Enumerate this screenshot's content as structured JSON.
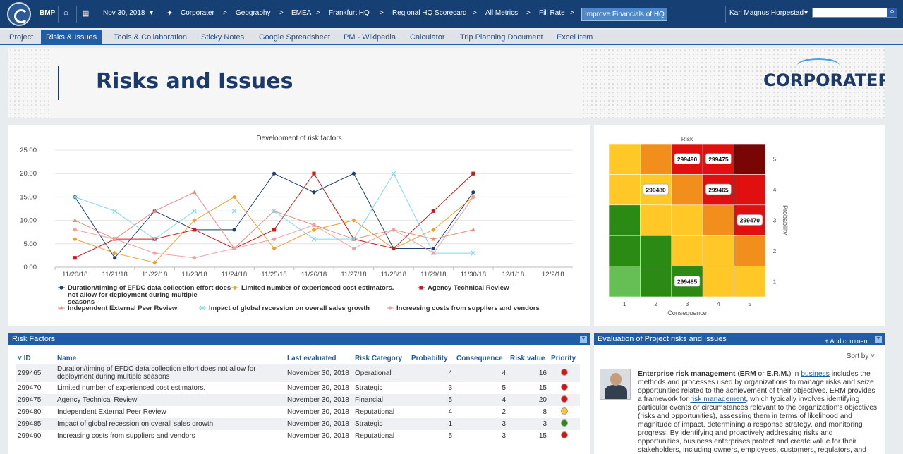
{
  "topbar": {
    "app_name": "BMP",
    "date": "Nov 30, 2018",
    "breadcrumb": [
      "Corporater",
      "Geography",
      "EMEA",
      "Frankfurt HQ",
      "Regional HQ Scorecard",
      "All Metrics",
      "Fill Rate"
    ],
    "highlight": "Improve Financials of HQ",
    "user": "Karl Magnus Horpestad"
  },
  "tabs": [
    "Project",
    "Risks & Issues",
    "Tools & Collaboration",
    "Sticky Notes",
    "Google Spreadsheet",
    "PM - Wikipedia",
    "Calculator",
    "Trip Planning Document",
    "Excel Item"
  ],
  "active_tab": "Risks & Issues",
  "banner": {
    "title": "Risks and Issues",
    "logo": "CORPORATER"
  },
  "chart_data": [
    {
      "type": "line",
      "title": "Development of risk factors",
      "categories": [
        "11/20/18",
        "11/21/18",
        "11/22/18",
        "11/23/18",
        "11/24/18",
        "11/25/18",
        "11/26/18",
        "11/27/18",
        "11/28/18",
        "11/29/18",
        "11/30/18",
        "12/1/18",
        "12/2/18"
      ],
      "ylim": [
        0,
        25
      ],
      "yticks": [
        "0.00",
        "5.00",
        "10.00",
        "15.00",
        "20.00",
        "25.00"
      ],
      "grid": true,
      "legend_position": "bottom",
      "series": [
        {
          "name": "Duration/timing of EFDC data collection effort does not allow for deployment during multiple seasons",
          "color": "#1f3f6e",
          "marker": "circle",
          "values": [
            15,
            2,
            12,
            8,
            8,
            20,
            16,
            20,
            4,
            4,
            16,
            null,
            null
          ]
        },
        {
          "name": "Limited number of experienced cost estimators.",
          "color": "#f0a030",
          "marker": "diamond",
          "values": [
            6,
            3,
            1,
            10,
            15,
            4,
            8,
            10,
            4,
            8,
            15,
            null,
            null
          ]
        },
        {
          "name": "Agency Technical Review",
          "color": "#cc1a1a",
          "marker": "square",
          "values": [
            2,
            6,
            6,
            8,
            4,
            8,
            20,
            6,
            4,
            12,
            20,
            null,
            null
          ]
        },
        {
          "name": "Independent External Peer Review",
          "color": "#ef8a80",
          "marker": "triangle",
          "values": [
            10,
            6,
            12,
            16,
            4,
            12,
            9,
            6,
            8,
            6,
            8,
            null,
            null
          ]
        },
        {
          "name": "Impact of global recession on overall sales growth",
          "color": "#7dd9ea",
          "marker": "cross",
          "values": [
            15,
            12,
            6,
            12,
            12,
            12,
            6,
            6,
            20,
            3,
            3,
            null,
            null
          ]
        },
        {
          "name": "Increasing costs from suppliers and vendors",
          "color": "#f0a0a0",
          "marker": "circle",
          "values": [
            8,
            6,
            3,
            2,
            4,
            6,
            9,
            4,
            8,
            3,
            15,
            null,
            null
          ]
        }
      ]
    },
    {
      "type": "heatmap",
      "title": "Risk",
      "xlabel": "Consequence",
      "ylabel": "Probability",
      "x": [
        1,
        2,
        3,
        4,
        5
      ],
      "y": [
        1,
        2,
        3,
        4,
        5
      ],
      "colors": [
        [
          "#ffc826",
          "#f28e1c",
          "#e01010",
          "#e01010",
          "#7a0505"
        ],
        [
          "#ffc826",
          "#ffc826",
          "#f28e1c",
          "#e01010",
          "#e01010"
        ],
        [
          "#2b8a14",
          "#ffc826",
          "#ffc826",
          "#f28e1c",
          "#e01010"
        ],
        [
          "#2b8a14",
          "#2b8a14",
          "#ffc826",
          "#ffc826",
          "#f28e1c"
        ],
        [
          "#66bf55",
          "#2b8a14",
          "#2b8a14",
          "#ffc826",
          "#ffc826"
        ]
      ],
      "points": [
        {
          "id": "299490",
          "consequence": 3,
          "probability": 5
        },
        {
          "id": "299475",
          "consequence": 4,
          "probability": 5
        },
        {
          "id": "299480",
          "consequence": 2,
          "probability": 4
        },
        {
          "id": "299465",
          "consequence": 4,
          "probability": 4
        },
        {
          "id": "299470",
          "consequence": 5,
          "probability": 3
        },
        {
          "id": "299485",
          "consequence": 3,
          "probability": 1
        }
      ]
    }
  ],
  "risk_factors": {
    "title": "Risk Factors",
    "columns": [
      "ID",
      "Name",
      "Last evaluated",
      "Risk Category",
      "Probability",
      "Consequence",
      "Risk value",
      "Priority"
    ],
    "rows": [
      {
        "id": "299465",
        "name": "Duration/timing of EFDC data collection effort does not allow for deployment during multiple seasons",
        "date": "November 30, 2018",
        "category": "Operational",
        "probability": "4",
        "consequence": "4",
        "value": "16",
        "priority_color": "#e01010"
      },
      {
        "id": "299470",
        "name": "Limited number of experienced cost estimators.",
        "date": "November 30, 2018",
        "category": "Strategic",
        "probability": "3",
        "consequence": "5",
        "value": "15",
        "priority_color": "#e01010"
      },
      {
        "id": "299475",
        "name": "Agency Technical Review",
        "date": "November 30, 2018",
        "category": "Financial",
        "probability": "5",
        "consequence": "4",
        "value": "20",
        "priority_color": "#e01010"
      },
      {
        "id": "299480",
        "name": "Independent External Peer Review",
        "date": "November 30, 2018",
        "category": "Reputational",
        "probability": "4",
        "consequence": "2",
        "value": "8",
        "priority_color": "#ffc826"
      },
      {
        "id": "299485",
        "name": "Impact of global recession on overall sales growth",
        "date": "November 30, 2018",
        "category": "Strategic",
        "probability": "1",
        "consequence": "3",
        "value": "3",
        "priority_color": "#2b8a14"
      },
      {
        "id": "299490",
        "name": "Increasing costs from suppliers and vendors",
        "date": "November 30, 2018",
        "category": "Reputational",
        "probability": "5",
        "consequence": "3",
        "value": "15",
        "priority_color": "#e01010"
      }
    ]
  },
  "evaluation": {
    "title": "Evaluation of Project risks and Issues",
    "add_comment": "+ Add comment",
    "sort_by": "Sort by",
    "text_bold": "Enterprise risk management",
    "text_p1": " (",
    "text_erm1": "ERM",
    "text_p2": " or ",
    "text_erm2": "E.R.M.",
    "text_p3": ") in ",
    "link1": "business",
    "text_p4": " includes the methods and processes used by organizations to manage risks and seize opportunities related to the achievement of their objectives. ERM provides a framework for ",
    "link2": "risk management",
    "text_p5": ", which typically involves identifying particular events or circumstances relevant to the organization's objectives (risks and opportunities), assessing them in terms of likelihood and magnitude of impact, determining a response strategy, and monitoring progress. By identifying and proactively addressing risks and opportunities, business enterprises protect and create value for their stakeholders, including owners, employees, customers, regulators, and society overall."
  }
}
